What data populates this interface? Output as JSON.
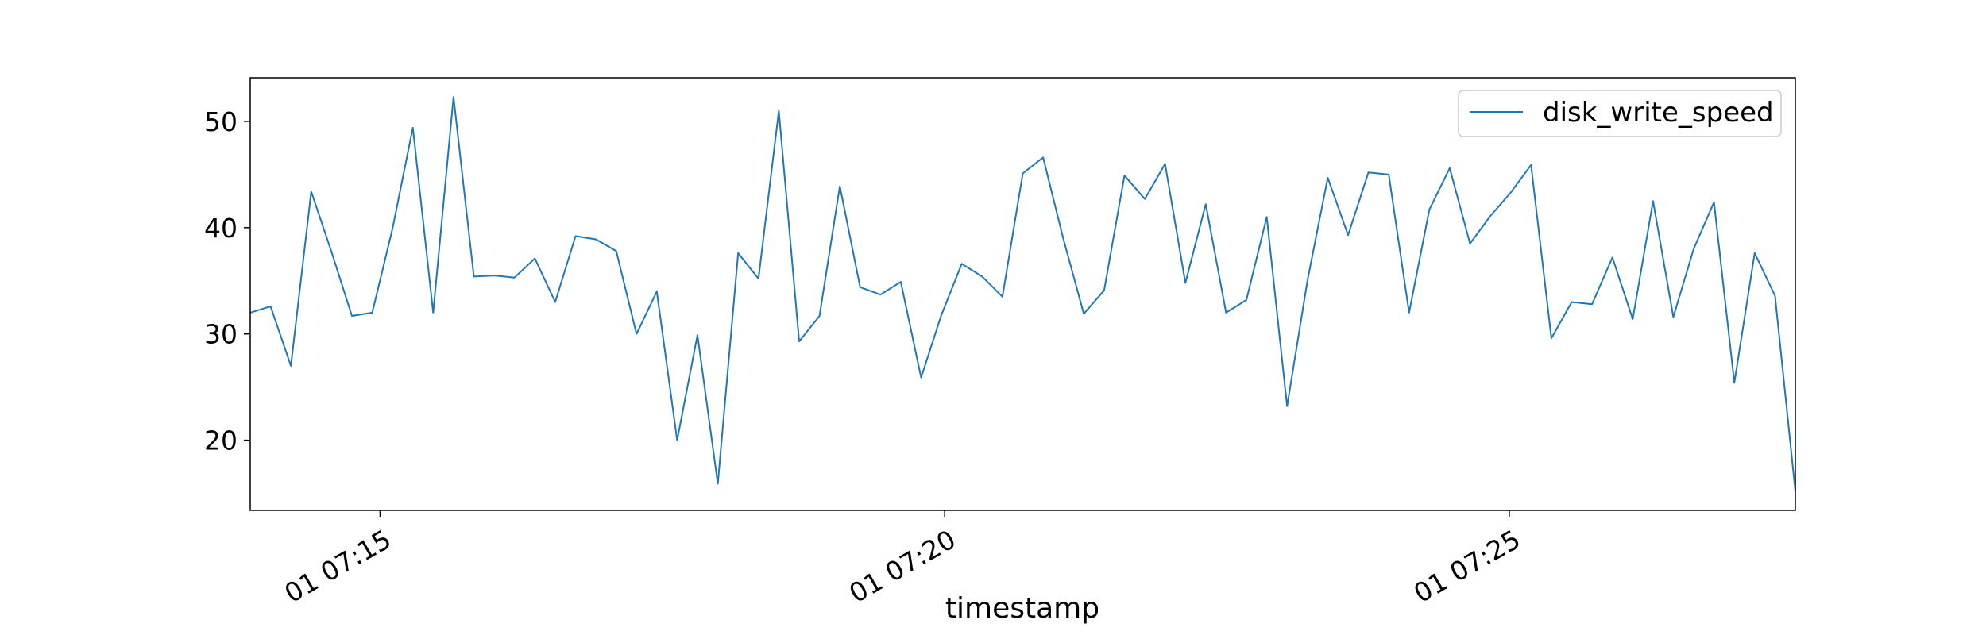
{
  "chart_data": {
    "type": "line",
    "title": "",
    "xlabel": "timestamp",
    "ylabel": "",
    "x_tick_labels": [
      "01 07:15",
      "01 07:20",
      "01 07:25"
    ],
    "y_tick_labels": [
      "20",
      "30",
      "40",
      "50"
    ],
    "y_ticks": [
      20,
      30,
      40,
      50
    ],
    "ylim": [
      13.4,
      54.1
    ],
    "grid": false,
    "legend_position": "top-right",
    "series_color": "#1f77b4",
    "series": [
      {
        "name": "disk_write_speed",
        "x_start": "07:13:51",
        "x_end": "07:27:32",
        "values": [
          32.0,
          32.6,
          27.0,
          43.4,
          37.7,
          31.7,
          32.0,
          39.9,
          49.4,
          32.0,
          52.3,
          35.4,
          35.5,
          35.3,
          37.1,
          33.0,
          39.2,
          38.9,
          37.8,
          30.0,
          34.0,
          20.0,
          29.9,
          15.9,
          37.6,
          35.2,
          51.0,
          29.3,
          31.7,
          43.9,
          34.4,
          33.7,
          34.9,
          25.9,
          31.8,
          36.6,
          35.4,
          33.5,
          45.1,
          46.6,
          38.9,
          31.9,
          34.1,
          44.9,
          42.7,
          46.0,
          34.8,
          42.2,
          32.0,
          33.2,
          41.0,
          23.2,
          35.0,
          44.7,
          39.3,
          45.2,
          45.0,
          32.0,
          41.7,
          45.6,
          38.5,
          41.1,
          43.3,
          45.9,
          29.6,
          33.0,
          32.8,
          37.2,
          31.4,
          42.5,
          31.6,
          38.0,
          42.4,
          25.4,
          37.6,
          33.6,
          15.2
        ]
      }
    ]
  }
}
